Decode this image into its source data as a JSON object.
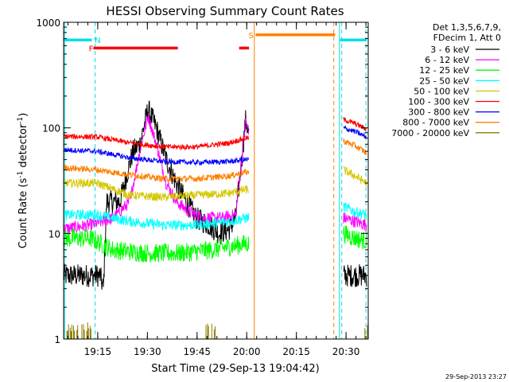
{
  "chart_data": {
    "type": "line",
    "title": "HESSI Observing Summary Count Rates",
    "xlabel": "Start Time (29-Sep-13 19:04:42)",
    "ylabel_main": "Count Rate (s",
    "ylabel_sup1": "-1",
    "ylabel_mid": " detector",
    "ylabel_sup2": "-1",
    "ylabel_end": ")",
    "yscale": "log",
    "ylim": [
      1,
      1000
    ],
    "y_ticks": [
      {
        "value": 1,
        "label": "1"
      },
      {
        "value": 10,
        "label": "10"
      },
      {
        "value": 100,
        "label": "100"
      },
      {
        "value": 1000,
        "label": "1000"
      }
    ],
    "xlim_minutes": [
      0,
      92
    ],
    "x_ticks": [
      {
        "minute": 10.3,
        "label": "19:15"
      },
      {
        "minute": 25.3,
        "label": "19:30"
      },
      {
        "minute": 40.3,
        "label": "19:45"
      },
      {
        "minute": 55.3,
        "label": "20:00"
      },
      {
        "minute": 70.3,
        "label": "20:15"
      },
      {
        "minute": 85.3,
        "label": "20:30"
      }
    ],
    "legend": {
      "placement": "right",
      "header1": "Det 1,3,5,6,7,9,",
      "header2": "FDecim 1, Att 0"
    },
    "series": [
      {
        "name": "3 - 6 keV",
        "color": "#000000",
        "points": [
          [
            0,
            4
          ],
          [
            11,
            4
          ],
          [
            12,
            3
          ],
          [
            13,
            20
          ],
          [
            17,
            20
          ],
          [
            19,
            35
          ],
          [
            21,
            60
          ],
          [
            23,
            70
          ],
          [
            25.5,
            150
          ],
          [
            28,
            100
          ],
          [
            31,
            50
          ],
          [
            34,
            30
          ],
          [
            37,
            20
          ],
          [
            40,
            14
          ],
          [
            44,
            12
          ],
          [
            47,
            10
          ],
          [
            50,
            11
          ],
          [
            52,
            14
          ],
          [
            55,
            120
          ],
          [
            56,
            85
          ],
          [
            84.5,
            4
          ],
          [
            91.5,
            4
          ]
        ]
      },
      {
        "name": "6 - 12 keV",
        "color": "#ff00ff",
        "points": [
          [
            0,
            11
          ],
          [
            8,
            12
          ],
          [
            15,
            14
          ],
          [
            20,
            20
          ],
          [
            23,
            60
          ],
          [
            25.5,
            130
          ],
          [
            28,
            70
          ],
          [
            31,
            30
          ],
          [
            34,
            20
          ],
          [
            38,
            16
          ],
          [
            42,
            14
          ],
          [
            48,
            14
          ],
          [
            52,
            15
          ],
          [
            54,
            60
          ],
          [
            55,
            120
          ],
          [
            56,
            85
          ],
          [
            84.5,
            14
          ],
          [
            88,
            13
          ],
          [
            91.5,
            12
          ]
        ]
      },
      {
        "name": "12 - 25 keV",
        "color": "#00ff00",
        "points": [
          [
            0,
            9
          ],
          [
            8,
            9
          ],
          [
            15,
            7
          ],
          [
            25,
            6.5
          ],
          [
            35,
            6.5
          ],
          [
            45,
            7
          ],
          [
            55,
            8
          ],
          [
            56,
            8
          ],
          [
            84.5,
            10
          ],
          [
            88,
            9
          ],
          [
            91.5,
            8.5
          ]
        ]
      },
      {
        "name": "25 - 50 keV",
        "color": "#00ffff",
        "points": [
          [
            0,
            15
          ],
          [
            10,
            15
          ],
          [
            20,
            13
          ],
          [
            30,
            12
          ],
          [
            40,
            12
          ],
          [
            50,
            13
          ],
          [
            55,
            14
          ],
          [
            56,
            14
          ],
          [
            84.5,
            18
          ],
          [
            88,
            16
          ],
          [
            91.5,
            15
          ]
        ]
      },
      {
        "name": "50 - 100 keV",
        "color": "#d4c800",
        "points": [
          [
            0,
            30
          ],
          [
            10,
            30
          ],
          [
            20,
            23
          ],
          [
            30,
            22
          ],
          [
            40,
            23
          ],
          [
            50,
            24
          ],
          [
            55,
            26
          ],
          [
            56,
            26
          ],
          [
            84.5,
            40
          ],
          [
            88,
            35
          ],
          [
            91.5,
            30
          ]
        ]
      },
      {
        "name": "100 - 300 keV",
        "color": "#ff0000",
        "points": [
          [
            0,
            83
          ],
          [
            10,
            82
          ],
          [
            20,
            72
          ],
          [
            30,
            66
          ],
          [
            40,
            66
          ],
          [
            50,
            72
          ],
          [
            55,
            80
          ],
          [
            56,
            80
          ],
          [
            84.5,
            120
          ],
          [
            88,
            110
          ],
          [
            91.5,
            97
          ]
        ]
      },
      {
        "name": "300 - 800 keV",
        "color": "#0000ff",
        "points": [
          [
            0,
            62
          ],
          [
            10,
            60
          ],
          [
            20,
            52
          ],
          [
            30,
            48
          ],
          [
            40,
            47
          ],
          [
            50,
            48
          ],
          [
            55,
            50
          ],
          [
            56,
            50
          ],
          [
            84.5,
            100
          ],
          [
            88,
            92
          ],
          [
            91.5,
            82
          ]
        ]
      },
      {
        "name": "800 - 7000 keV",
        "color": "#ff8000",
        "points": [
          [
            0,
            42
          ],
          [
            10,
            40
          ],
          [
            20,
            36
          ],
          [
            30,
            33
          ],
          [
            40,
            33
          ],
          [
            50,
            35
          ],
          [
            55,
            38
          ],
          [
            56,
            38
          ],
          [
            84.5,
            75
          ],
          [
            88,
            68
          ],
          [
            91.5,
            58
          ]
        ]
      },
      {
        "name": "7000 - 20000 keV",
        "color": "#8b7d00",
        "bursts": [
          [
            1,
            9
          ],
          [
            42,
            46
          ],
          [
            91,
            92
          ]
        ],
        "burst_top": 1.45
      }
    ],
    "flags": [
      {
        "label": "N",
        "color": "#00e0e0",
        "segments": [
          [
            0,
            8.5
          ],
          [
            83.5,
            91.5
          ]
        ],
        "y_value": 680,
        "label_minute": 10.3
      },
      {
        "label": "F",
        "color": "#ff0000",
        "segments": [
          [
            9,
            34.5
          ],
          [
            53,
            56
          ]
        ],
        "y_value": 570,
        "label_minute": 8.3
      },
      {
        "label": "S",
        "color": "#ff8000",
        "segments": [
          [
            58,
            82
          ]
        ],
        "y_value": 760,
        "label_minute": 56.6
      }
    ],
    "markers": [
      {
        "minute": 0.3,
        "color": "#00e0e0",
        "style": "solid"
      },
      {
        "minute": 9.5,
        "color": "#00e0e0",
        "style": "dashed"
      },
      {
        "minute": 57.6,
        "color": "#ff8000",
        "style": "solid"
      },
      {
        "minute": 81.6,
        "color": "#ff8000",
        "style": "dashed"
      },
      {
        "minute": 83.3,
        "color": "#00e0e0",
        "style": "solid"
      },
      {
        "minute": 84,
        "color": "#00e0e0",
        "style": "dashed"
      },
      {
        "minute": 91.3,
        "color": "#00e0e0",
        "style": "dashed"
      }
    ],
    "footer": "29-Sep-2013 23:27"
  }
}
